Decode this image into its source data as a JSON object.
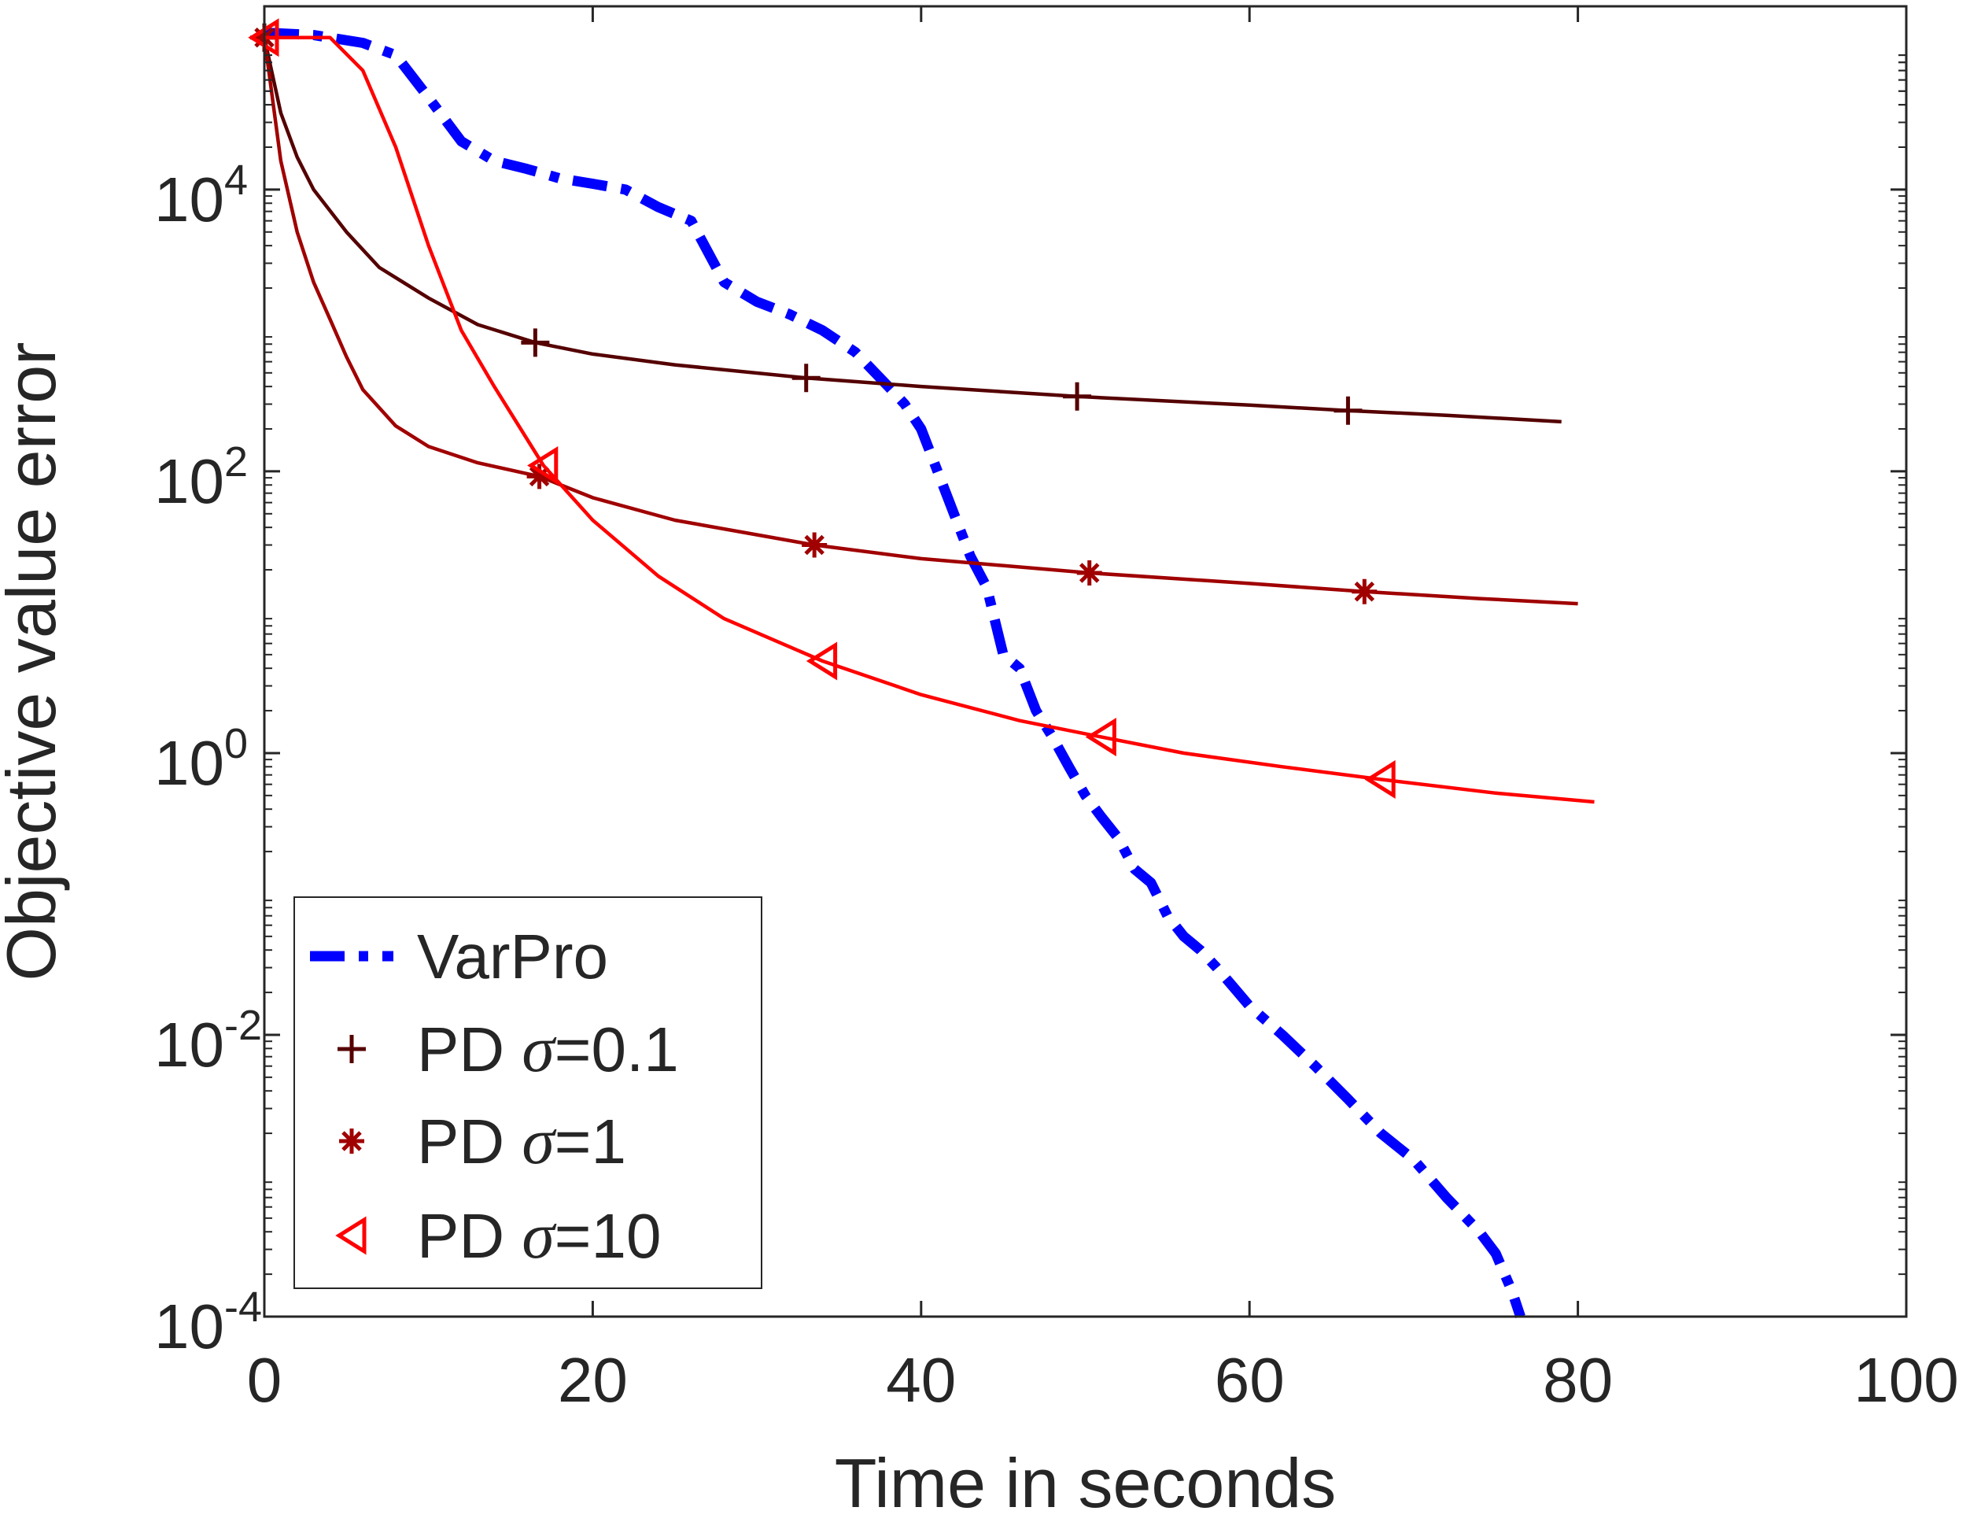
{
  "chart_data": {
    "type": "line",
    "xlabel": "Time in seconds",
    "ylabel": "Objective value error",
    "xlim": [
      0,
      100
    ],
    "ylim": [
      0.0001,
      200000
    ],
    "yscale": "log",
    "grid": false,
    "legend_position": "bottom-left",
    "x_ticks": [
      "0",
      "20",
      "40",
      "60",
      "80",
      "100"
    ],
    "y_ticks": [
      {
        "value": 0.0001,
        "base": "10",
        "exp": "-4"
      },
      {
        "value": 0.01,
        "base": "10",
        "exp": "-2"
      },
      {
        "value": 1,
        "base": "10",
        "exp": "0"
      },
      {
        "value": 100,
        "base": "10",
        "exp": "2"
      },
      {
        "value": 10000,
        "base": "10",
        "exp": "4"
      }
    ],
    "series": [
      {
        "name": "VarPro",
        "color": "#0000ff",
        "style": "dash-dot",
        "marker": "none",
        "points": [
          [
            0,
            130000
          ],
          [
            3,
            125000
          ],
          [
            6,
            110000
          ],
          [
            8,
            90000
          ],
          [
            10,
            45000
          ],
          [
            12,
            22000
          ],
          [
            14,
            16000
          ],
          [
            16,
            14000
          ],
          [
            18,
            12000
          ],
          [
            20,
            11000
          ],
          [
            22,
            10000
          ],
          [
            24,
            7500
          ],
          [
            26,
            6000
          ],
          [
            28,
            2200
          ],
          [
            30,
            1600
          ],
          [
            32,
            1300
          ],
          [
            34,
            1000
          ],
          [
            36,
            700
          ],
          [
            38,
            400
          ],
          [
            39,
            300
          ],
          [
            40,
            200
          ],
          [
            41,
            100
          ],
          [
            42,
            50
          ],
          [
            43,
            25
          ],
          [
            44,
            15
          ],
          [
            45,
            5
          ],
          [
            46,
            4
          ],
          [
            47,
            2
          ],
          [
            48,
            1.3
          ],
          [
            49,
            0.8
          ],
          [
            50,
            0.5
          ],
          [
            51,
            0.35
          ],
          [
            52,
            0.25
          ],
          [
            53,
            0.15
          ],
          [
            54,
            0.12
          ],
          [
            55,
            0.07
          ],
          [
            56,
            0.05
          ],
          [
            57,
            0.04
          ],
          [
            58,
            0.03
          ],
          [
            59,
            0.022
          ],
          [
            60,
            0.016
          ],
          [
            62,
            0.01
          ],
          [
            64,
            0.006
          ],
          [
            66,
            0.0035
          ],
          [
            68,
            0.002
          ],
          [
            70,
            0.0013
          ],
          [
            72,
            0.0007
          ],
          [
            74,
            0.0004
          ],
          [
            75,
            0.00028
          ],
          [
            76,
            0.00015
          ],
          [
            76.5,
            0.0001
          ]
        ]
      },
      {
        "name": "PD σ=0.1",
        "legend_label": "PD ",
        "legend_sigma": "σ",
        "legend_value": "=0.1",
        "color": "#550000",
        "style": "solid",
        "marker": "+",
        "marker_x": [
          0,
          16.5,
          33,
          49.5,
          66
        ],
        "points": [
          [
            0,
            120000
          ],
          [
            1,
            35000
          ],
          [
            2,
            17000
          ],
          [
            3,
            10000
          ],
          [
            5,
            5000
          ],
          [
            7,
            2800
          ],
          [
            10,
            1700
          ],
          [
            13,
            1100
          ],
          [
            16.5,
            820
          ],
          [
            20,
            680
          ],
          [
            25,
            570
          ],
          [
            33,
            460
          ],
          [
            40,
            400
          ],
          [
            49.5,
            340
          ],
          [
            60,
            295
          ],
          [
            66,
            270
          ],
          [
            72,
            250
          ],
          [
            79,
            225
          ]
        ]
      },
      {
        "name": "PD σ=1",
        "legend_label": "PD ",
        "legend_sigma": "σ",
        "legend_value": "=1",
        "color": "#a00000",
        "style": "solid",
        "marker": "*",
        "marker_x": [
          0,
          16.75,
          33.5,
          50.25,
          67
        ],
        "points": [
          [
            0,
            120000
          ],
          [
            1,
            16000
          ],
          [
            2,
            5000
          ],
          [
            3,
            2200
          ],
          [
            4,
            1200
          ],
          [
            5,
            650
          ],
          [
            6,
            380
          ],
          [
            8,
            210
          ],
          [
            10,
            150
          ],
          [
            13,
            115
          ],
          [
            16.75,
            92
          ],
          [
            20,
            65
          ],
          [
            25,
            45
          ],
          [
            33.5,
            30
          ],
          [
            40,
            24
          ],
          [
            50.25,
            19
          ],
          [
            60,
            16
          ],
          [
            67,
            14
          ],
          [
            74,
            12.5
          ],
          [
            80,
            11.5
          ]
        ]
      },
      {
        "name": "PD σ=10",
        "legend_label": "PD ",
        "legend_sigma": "σ",
        "legend_value": "=10",
        "color": "#ff0000",
        "style": "solid",
        "marker": "<",
        "marker_x": [
          0,
          17,
          34,
          51,
          68
        ],
        "points": [
          [
            0,
            120000
          ],
          [
            2,
            120000
          ],
          [
            4,
            120000
          ],
          [
            6,
            70000
          ],
          [
            8,
            20000
          ],
          [
            10,
            4000
          ],
          [
            12,
            1000
          ],
          [
            14,
            400
          ],
          [
            17,
            110
          ],
          [
            20,
            45
          ],
          [
            24,
            18
          ],
          [
            28,
            9
          ],
          [
            34,
            4.5
          ],
          [
            40,
            2.6
          ],
          [
            46,
            1.7
          ],
          [
            51,
            1.3
          ],
          [
            56,
            1.0
          ],
          [
            62,
            0.8
          ],
          [
            68,
            0.65
          ],
          [
            75,
            0.52
          ],
          [
            81,
            0.45
          ]
        ]
      }
    ]
  }
}
